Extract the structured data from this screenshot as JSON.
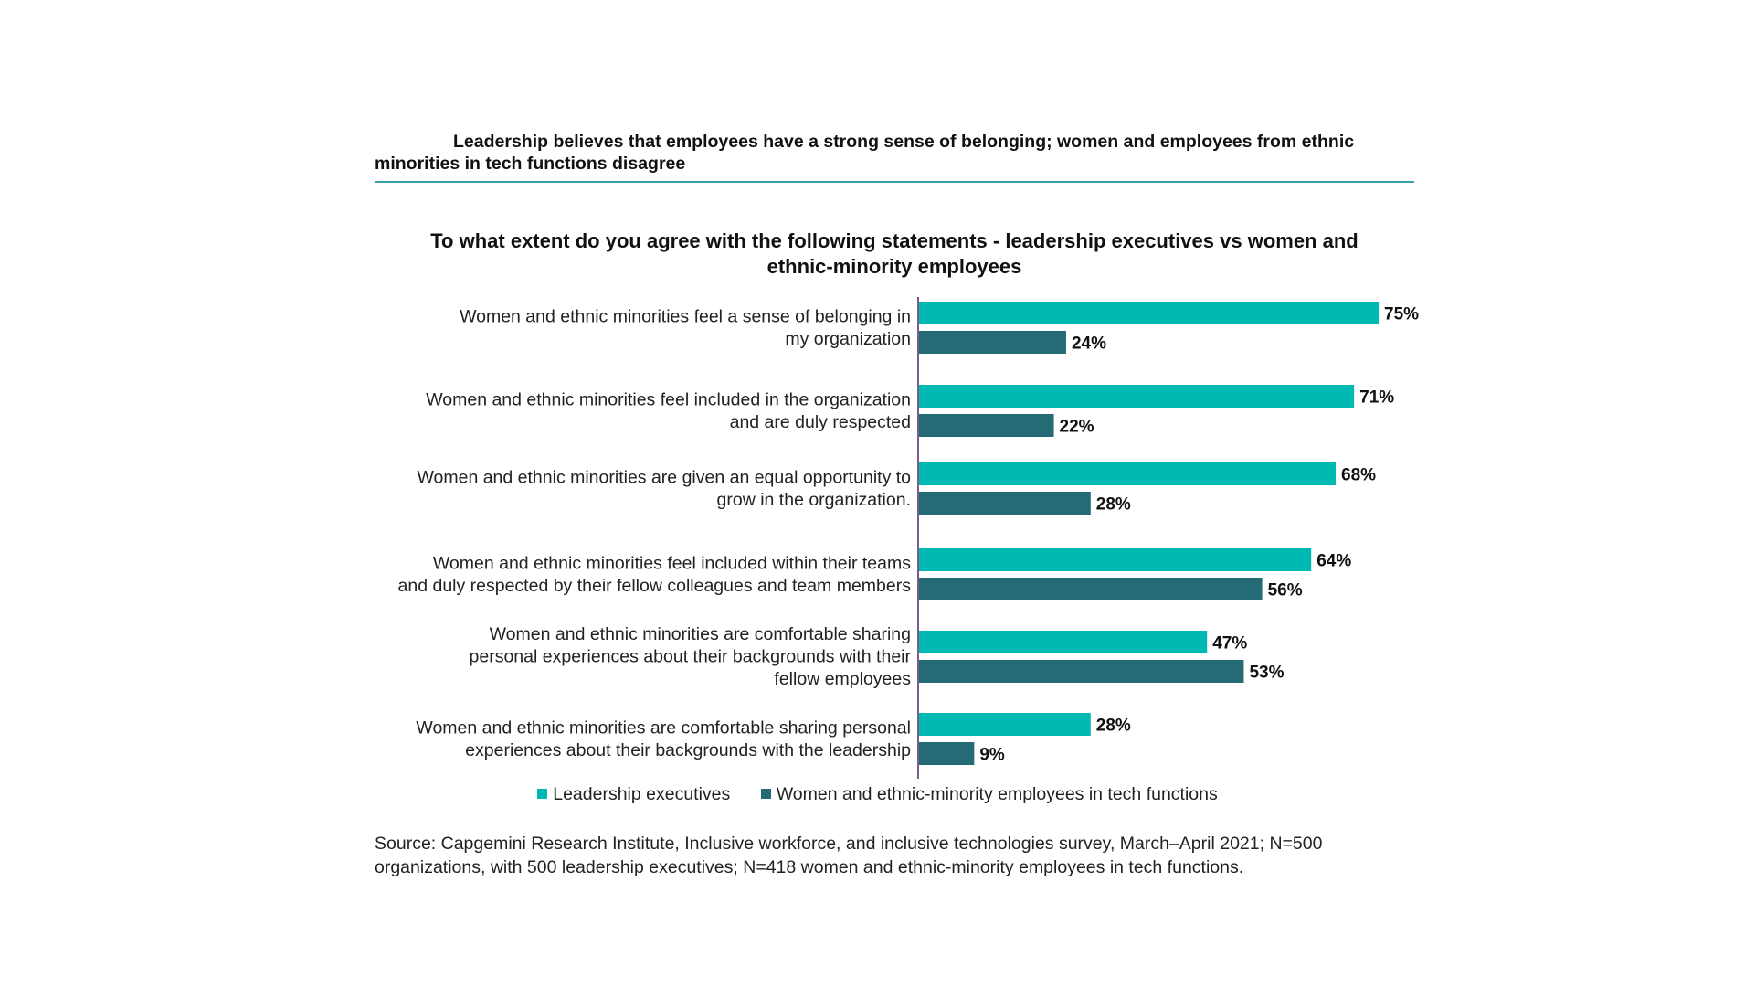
{
  "header": {
    "line1": "Leadership believes that employees have a strong sense of belonging; women and employees from ethnic",
    "line2": "minorities in tech functions disagree"
  },
  "colors": {
    "leadership": "#00b9b2",
    "employees": "#256b75",
    "rule": "#3aa0ad",
    "axis": "#7a5c8a"
  },
  "chart_data": {
    "type": "bar",
    "orientation": "horizontal",
    "title_lines": [
      "To what extent do you agree with the following statements - leadership executives vs women and",
      "ethnic-minority employees"
    ],
    "categories": [
      [
        "Women and ethnic minorities feel a sense of belonging in",
        "my organization"
      ],
      [
        "Women and ethnic minorities feel included in the organization",
        "and are duly respected"
      ],
      [
        "Women and ethnic minorities are given an equal opportunity to",
        "grow in the organization."
      ],
      [
        "Women and ethnic minorities feel included within their teams",
        "and duly respected by their fellow colleagues and team members"
      ],
      [
        "Women and ethnic minorities are comfortable sharing",
        "personal experiences about their backgrounds with their",
        "fellow employees"
      ],
      [
        "Women and ethnic minorities are comfortable sharing personal",
        "experiences about their backgrounds with the leadership"
      ]
    ],
    "series": [
      {
        "name": "Leadership executives",
        "values": [
          75,
          71,
          68,
          64,
          47,
          28
        ]
      },
      {
        "name": "Women and ethnic-minority employees in tech functions",
        "values": [
          24,
          22,
          28,
          56,
          53,
          9
        ]
      }
    ],
    "value_suffix": "%",
    "xlim": [
      0,
      75
    ],
    "legend_position": "bottom-center"
  },
  "legend": {
    "leadership": "Leadership executives",
    "employees": "Women and ethnic-minority employees in tech functions"
  },
  "source": {
    "line1": "Source: Capgemini Research Institute, Inclusive workforce, and inclusive technologies survey, March–April 2021; N=500",
    "line2": "organizations, with 500 leadership executives; N=418 women and ethnic-minority employees in tech functions."
  }
}
